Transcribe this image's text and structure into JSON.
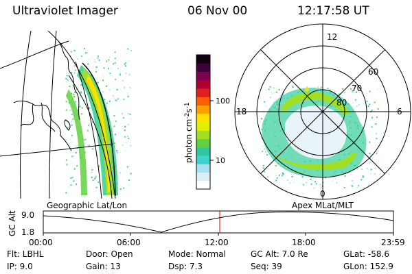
{
  "header": {
    "title": "Ultraviolet Imager",
    "date": "06 Nov 00",
    "time": "12:17:58 UT"
  },
  "geo_panel": {
    "label": "Geographic Lat/Lon"
  },
  "apex_panel": {
    "label": "Apex MLat/MLT",
    "mlt_labels": [
      "12",
      "18",
      "6",
      "0"
    ],
    "lat_labels": [
      "60",
      "70",
      "80"
    ]
  },
  "colorbar": {
    "unit_label": "photon cm",
    "unit_exp1": "-2",
    "unit_s": "s",
    "unit_exp2": "-1",
    "ticks": [
      "100",
      "10"
    ],
    "colors": [
      "#ffffff",
      "#d8f0f8",
      "#a8e0f0",
      "#40d0d0",
      "#30c8a0",
      "#60d040",
      "#a0e020",
      "#e0f000",
      "#ffe000",
      "#ffa000",
      "#ff6000",
      "#e02020",
      "#b00030",
      "#800050",
      "#400040",
      "#100010"
    ]
  },
  "altitude_plot": {
    "ylabel": "GC Alt",
    "yticks": [
      "9.0",
      "1.8"
    ],
    "xticks": [
      "00:00",
      "06:00",
      "12:00",
      "18:00",
      "23:59"
    ],
    "marker_color": "#e00000"
  },
  "info": {
    "flt": "Flt: LBHL",
    "ip": "IP:  9.0",
    "door": "Door: Open",
    "gain": "Gain: 13",
    "mode": "Mode: Normal",
    "dsp": "Dsp:    7.3",
    "gcalt": "GC Alt: 7.0 Re",
    "seq": "Seq: 39",
    "glat": "GLat: -58.6",
    "glon": "GLon: 152.9"
  }
}
